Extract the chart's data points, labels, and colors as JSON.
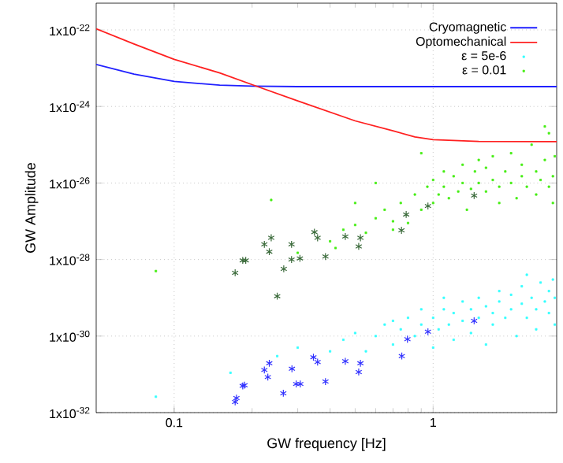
{
  "chart_data": {
    "type": "scatter",
    "xlabel": "GW frequency [Hz]",
    "ylabel": "GW Amplitude",
    "log": "xy",
    "grid": true,
    "legend": "top right",
    "marker": "square",
    "xlim": [
      0.05,
      3
    ],
    "ylim": [
      1e-32,
      5e-22
    ],
    "xticks": [
      0.1,
      1
    ],
    "yticks": [
      {
        "value": 1e-32,
        "label": "1x10$^{-32}$"
      },
      {
        "value": 1e-30,
        "label": "1x10$^{-30}$"
      },
      {
        "value": 1e-28,
        "label": "1x10$^{-28}$"
      },
      {
        "value": 1e-26,
        "label": "1x10$^{-26}$"
      },
      {
        "value": 1e-24,
        "label": "1x10$^{-24}$"
      },
      {
        "value": 1e-22,
        "label": "1x10$^{-22}$"
      }
    ],
    "series": [
      {
        "name": "Cryomagnetic",
        "type": "line",
        "marker": "none",
        "color": "#2020ff",
        "x": [
          0.05,
          0.07,
          0.1,
          0.15,
          0.2,
          0.3,
          3
        ],
        "values": [
          1.25e-23,
          7e-24,
          4.5e-24,
          3.6e-24,
          3.4e-24,
          3.3e-24,
          3.3e-24
        ]
      },
      {
        "name": "Optomechanical",
        "type": "line",
        "marker": "none",
        "color": "#ff2020",
        "x": [
          0.05,
          0.07,
          0.1,
          0.15,
          0.21,
          0.3,
          0.5,
          0.7,
          0.85,
          1,
          1.5,
          3
        ],
        "values": [
          1.07e-22,
          4.3e-23,
          1.7e-23,
          7.5e-24,
          3.3e-24,
          1.4e-24,
          4.2e-25,
          2.3e-25,
          1.6e-25,
          1.35e-25,
          1.22e-25,
          1.2e-25
        ]
      },
      {
        "name": "ε = 5e-6",
        "color": "#33ffff",
        "x": [
          0.085,
          0.165,
          0.25,
          0.3,
          0.4,
          0.45,
          0.5,
          0.55,
          0.6,
          0.65,
          0.7,
          0.75,
          0.8,
          0.85,
          0.9,
          1.0,
          1.0,
          1.05,
          1.1,
          1.15,
          1.2,
          1.2,
          1.3,
          1.3,
          1.4,
          1.4,
          1.5,
          1.5,
          1.6,
          1.6,
          1.7,
          1.7,
          1.8,
          1.8,
          1.9,
          2.0,
          2.0,
          2.1,
          2.2,
          2.2,
          2.3,
          2.4,
          2.5,
          2.5,
          2.6,
          2.7,
          2.8,
          2.8,
          2.9,
          2.95,
          2.95,
          0.7,
          0.9,
          1.1,
          2.3
        ],
        "values": [
          2.6e-32,
          1.1e-31,
          3e-31,
          5e-31,
          4e-31,
          8e-31,
          1.2e-30,
          4e-31,
          1e-30,
          2e-30,
          6e-31,
          1.5e-30,
          3e-30,
          1e-30,
          2e-30,
          5e-31,
          3e-30,
          1.5e-30,
          5e-30,
          2e-30,
          8e-31,
          4e-30,
          2.5e-30,
          8e-30,
          1.2e-30,
          5e-30,
          3e-30,
          1e-29,
          6e-31,
          6e-30,
          2e-30,
          4e-30,
          1.5e-29,
          8e-30,
          3e-30,
          5e-30,
          1.2e-29,
          1e-30,
          7e-30,
          2e-29,
          3e-30,
          1e-29,
          5e-30,
          1.5e-30,
          2.5e-29,
          8e-30,
          4e-30,
          1.5e-29,
          3e-29,
          1e-29,
          2e-30,
          2.5e-30,
          5e-30,
          1e-29,
          4e-29
        ]
      },
      {
        "name": "ε = 0.01",
        "color": "#44ee11",
        "x": [
          0.085,
          0.237,
          0.3,
          0.42,
          0.4,
          0.45,
          0.5,
          0.55,
          0.6,
          0.65,
          0.7,
          0.75,
          0.8,
          0.85,
          0.9,
          0.95,
          1.0,
          1.0,
          1.05,
          1.1,
          1.1,
          1.15,
          1.2,
          1.25,
          1.3,
          1.3,
          1.35,
          1.4,
          1.45,
          1.5,
          1.5,
          1.6,
          1.6,
          1.7,
          1.7,
          1.8,
          1.8,
          1.9,
          2.0,
          2.0,
          2.1,
          2.2,
          2.2,
          2.3,
          2.4,
          2.5,
          2.5,
          2.6,
          2.7,
          2.8,
          2.8,
          2.9,
          2.9,
          2.95,
          0.9,
          0.7,
          0.5,
          0.6,
          2.7
        ],
        "values": [
          5e-29,
          3.6e-27,
          1.5e-28,
          2e-28,
          3e-28,
          6e-28,
          8e-28,
          5e-28,
          1.2e-27,
          2e-27,
          1e-27,
          3e-27,
          9e-28,
          5e-27,
          2e-27,
          8e-27,
          3e-27,
          1.2e-26,
          5e-27,
          2e-26,
          8e-27,
          4e-27,
          1.5e-26,
          6e-27,
          3e-26,
          1e-26,
          2e-27,
          7e-27,
          2e-26,
          1e-26,
          4e-26,
          6e-27,
          2.5e-26,
          1.2e-26,
          5e-26,
          3e-27,
          8e-27,
          2e-26,
          1e-26,
          6e-26,
          4e-27,
          1.5e-26,
          3e-26,
          8e-27,
          1e-25,
          2e-26,
          5e-27,
          1.2e-26,
          4e-26,
          8e-27,
          2e-25,
          1.5e-26,
          3e-27,
          5e-26,
          6e-26,
          6e-28,
          3e-27,
          1e-26,
          3e-25
        ]
      },
      {
        "marker": "cross",
        "color": "#3a6a3a",
        "x": [
          0.172,
          0.184,
          0.189,
          0.223,
          0.233,
          0.237,
          0.25,
          0.265,
          0.284,
          0.284,
          0.306,
          0.348,
          0.358,
          0.384,
          0.458,
          0.524,
          0.516,
          0.755,
          0.787,
          0.955,
          1.44
        ],
        "values": [
          4.5e-29,
          9.5e-29,
          9.5e-29,
          2.5e-28,
          1.6e-28,
          3.7e-28,
          1.1e-29,
          5.7e-29,
          2.5e-28,
          1e-28,
          1.07e-28,
          5.2e-28,
          3.7e-28,
          1.2e-28,
          4e-28,
          3.7e-28,
          2.2e-28,
          5.8e-28,
          1.5e-27,
          2.5e-27,
          4.7e-27
        ]
      },
      {
        "marker": "cross",
        "color": "#3030ff",
        "x": [
          0.172,
          0.174,
          0.184,
          0.187,
          0.223,
          0.233,
          0.23,
          0.264,
          0.285,
          0.296,
          0.307,
          0.345,
          0.358,
          0.384,
          0.458,
          0.524,
          0.516,
          0.757,
          0.796,
          0.955,
          1.44
        ],
        "values": [
          1.9e-32,
          2.4e-32,
          5e-32,
          5.2e-32,
          1.3e-31,
          1.95e-31,
          8.5e-32,
          3.2e-32,
          1.4e-31,
          5.6e-32,
          5.6e-32,
          2.8e-31,
          2.1e-31,
          6.5e-32,
          2.2e-31,
          1.95e-31,
          1.15e-31,
          3e-31,
          8.3e-31,
          1.3e-30,
          2.5e-30
        ]
      }
    ]
  }
}
